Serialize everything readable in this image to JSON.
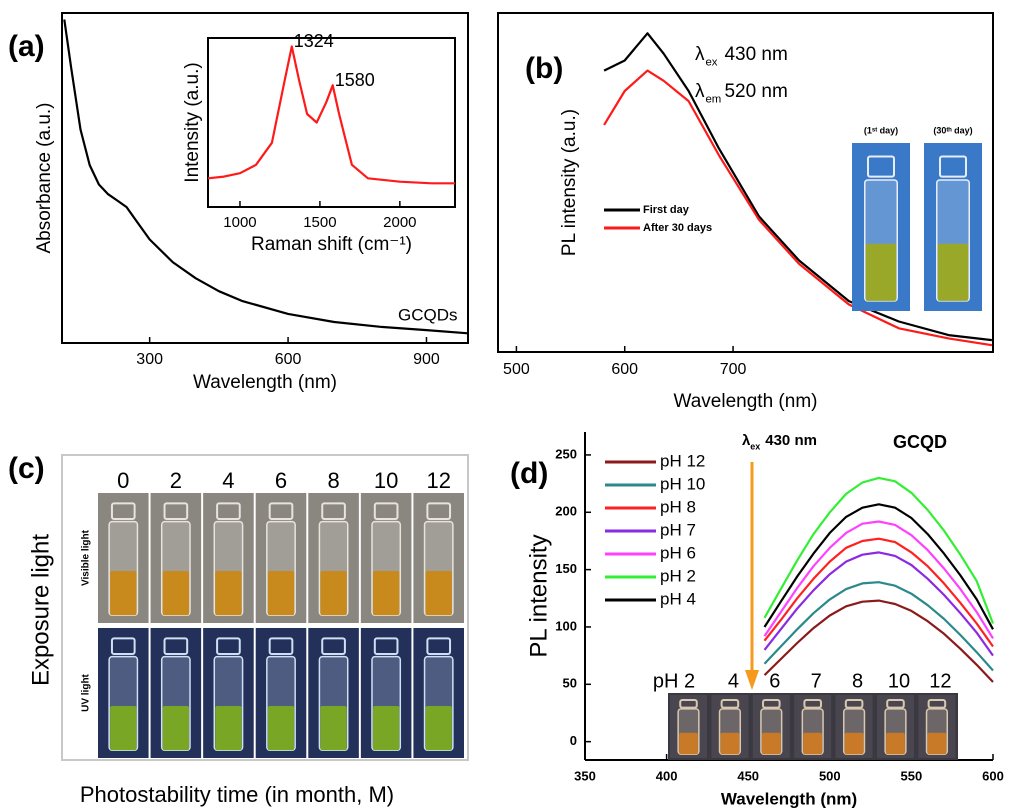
{
  "chart_data": [
    {
      "type": "line",
      "panel_label": "(a)",
      "xlabel": "Wavelength (nm)",
      "ylabel": "Absorbance (a.u.)",
      "annotation": "GCQDs",
      "x": [
        115,
        130,
        150,
        170,
        190,
        210,
        230,
        250,
        270,
        300,
        350,
        400,
        450,
        500,
        600,
        700,
        800,
        900,
        990
      ],
      "series": [
        {
          "color": "#000000",
          "values": [
            1.0,
            0.85,
            0.66,
            0.55,
            0.49,
            0.46,
            0.44,
            0.42,
            0.38,
            0.32,
            0.25,
            0.2,
            0.16,
            0.13,
            0.09,
            0.065,
            0.05,
            0.04,
            0.03
          ]
        }
      ],
      "xlim": [
        110,
        990
      ],
      "ylim": [
        0,
        1.02
      ],
      "xticks": [
        300,
        600,
        900
      ]
    },
    {
      "type": "line",
      "xlabel": "Raman shift (cm⁻¹)",
      "ylabel": "Intensity (a.u.)",
      "peaks": [
        1324,
        1580
      ],
      "x": [
        800,
        900,
        1000,
        1100,
        1200,
        1280,
        1324,
        1370,
        1420,
        1480,
        1540,
        1580,
        1620,
        1700,
        1800,
        2000,
        2200,
        2345
      ],
      "series": [
        {
          "color": "#ff1a1a",
          "values": [
            0.17,
            0.18,
            0.2,
            0.25,
            0.38,
            0.75,
            0.95,
            0.75,
            0.55,
            0.5,
            0.62,
            0.72,
            0.55,
            0.25,
            0.17,
            0.15,
            0.14,
            0.14
          ]
        }
      ],
      "xlim": [
        800,
        2345
      ],
      "ylim": [
        0,
        1
      ],
      "xticks": [
        1000,
        1500,
        2000
      ]
    },
    {
      "type": "line",
      "panel_label": "(b)",
      "xlabel": "Wavelength (nm)",
      "ylabel": "PL intensity (a.u.)",
      "excitation": {
        "symbol": "λ",
        "sub": "ex",
        "text": "430 nm"
      },
      "emission": {
        "symbol": "λ",
        "sub": "em",
        "text": "520 nm"
      },
      "photo_labels": [
        "(1ˢᵗ day)",
        "(30ᵗʰ day)"
      ],
      "x": [
        581,
        600,
        621,
        636,
        659,
        687,
        724,
        761,
        807,
        853,
        899,
        939
      ],
      "series": [
        {
          "name": "First day",
          "color": "#000000",
          "values": [
            0.83,
            0.86,
            0.94,
            0.88,
            0.77,
            0.6,
            0.4,
            0.27,
            0.15,
            0.09,
            0.05,
            0.035
          ]
        },
        {
          "name": "After 30 days",
          "color": "#ff1a1a",
          "values": [
            0.67,
            0.77,
            0.83,
            0.8,
            0.74,
            0.58,
            0.39,
            0.26,
            0.14,
            0.07,
            0.04,
            0.02
          ]
        }
      ],
      "xlim": [
        483,
        940
      ],
      "ylim": [
        0,
        1
      ],
      "xticks": [
        500,
        600,
        700
      ]
    },
    {
      "type": "photo",
      "panel_label": "(c)",
      "columns": [
        "0",
        "2",
        "4",
        "6",
        "8",
        "10",
        "12"
      ],
      "rows": [
        "Visible light",
        "UV light"
      ],
      "ylabel": "Exposure light",
      "xlabel": "Photostability time (in month, M)"
    },
    {
      "type": "line",
      "panel_label": "(d)",
      "xlabel": "Wavelength (nm)",
      "ylabel": "PL intensity",
      "excitation": {
        "symbol": "λ",
        "sub": "ex",
        "text": "430 nm"
      },
      "sample": "GCQD",
      "photo_labels": [
        "pH 2",
        "4",
        "6",
        "7",
        "8",
        "10",
        "12"
      ],
      "x": [
        460,
        470,
        480,
        490,
        500,
        510,
        520,
        530,
        540,
        550,
        560,
        570,
        580,
        590,
        600
      ],
      "series": [
        {
          "name": "pH 12",
          "color": "#8b1a1a",
          "values": [
            58,
            72,
            86,
            99,
            110,
            118,
            122,
            123,
            120,
            114,
            105,
            94,
            81,
            67,
            52
          ]
        },
        {
          "name": "pH 10",
          "color": "#2a8a8a",
          "values": [
            68,
            83,
            98,
            112,
            124,
            133,
            138,
            139,
            136,
            129,
            119,
            107,
            93,
            78,
            62
          ]
        },
        {
          "name": "pH 8",
          "color": "#ff2020",
          "values": [
            88,
            106,
            125,
            142,
            157,
            169,
            175,
            177,
            174,
            165,
            153,
            138,
            121,
            103,
            83
          ]
        },
        {
          "name": "pH 7",
          "color": "#8a2be2",
          "values": [
            80,
            98,
            116,
            132,
            146,
            157,
            163,
            165,
            162,
            154,
            142,
            128,
            112,
            95,
            75
          ]
        },
        {
          "name": "pH 6",
          "color": "#ff40ff",
          "values": [
            92,
            113,
            134,
            153,
            169,
            182,
            190,
            192,
            189,
            180,
            167,
            151,
            133,
            113,
            90
          ]
        },
        {
          "name": "pH 2",
          "color": "#33ee33",
          "values": [
            108,
            133,
            158,
            181,
            200,
            216,
            226,
            230,
            227,
            217,
            202,
            184,
            163,
            140,
            103
          ]
        },
        {
          "name": "pH 4",
          "color": "#000000",
          "values": [
            100,
            122,
            144,
            164,
            182,
            196,
            204,
            207,
            204,
            195,
            181,
            164,
            145,
            124,
            98
          ]
        }
      ],
      "xlim": [
        350,
        600
      ],
      "ylim": [
        -16,
        270
      ],
      "xticks": [
        350,
        400,
        450,
        500,
        550,
        600
      ],
      "yticks": [
        0,
        50,
        100,
        150,
        200,
        250
      ]
    }
  ]
}
